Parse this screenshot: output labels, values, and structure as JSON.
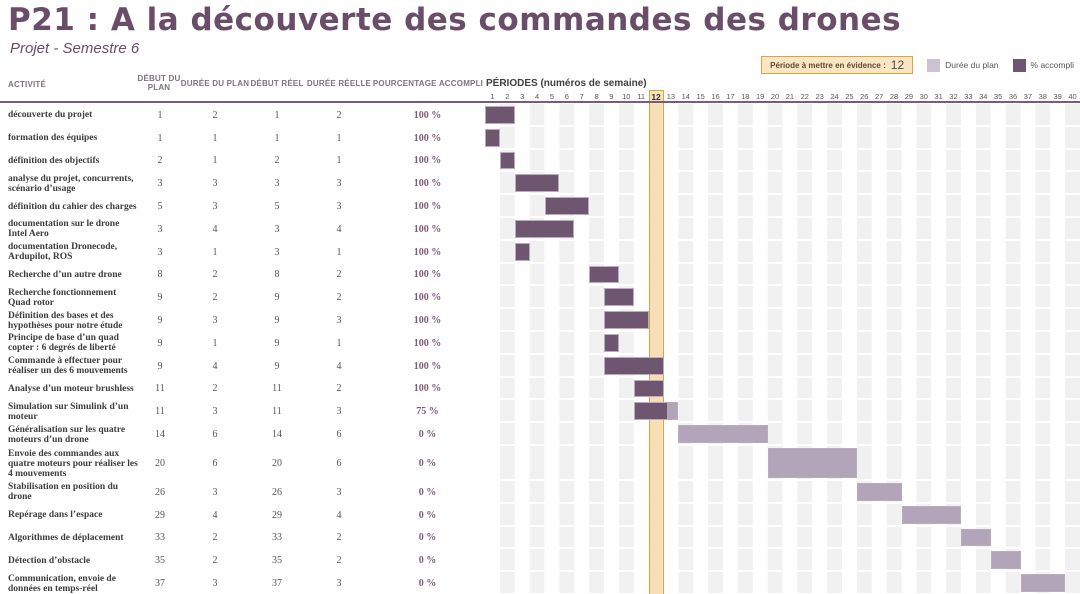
{
  "title": "P21 : A la découverte des commandes des drones",
  "subtitle": "Projet - Semestre 6",
  "legend": {
    "highlight_label": "Période à mettre en évidence :",
    "highlight_value": "12",
    "plan_label": "Durée du plan",
    "done_label": "% accompli"
  },
  "colors": {
    "title_purple": "#6a4d68",
    "header_line": "#7a5c78",
    "bar_plan": "#b3a5b9",
    "bar_done": "#6e5570",
    "stripe_gray": "#f1f1f1",
    "highlight_fill": "#f6dfb7",
    "highlight_border": "#d9a441",
    "legend_plan_swatch": "#cdc2d2"
  },
  "table": {
    "headers": [
      "ACTIVITÉ",
      "DÉBUT DU PLAN",
      "DURÉE DU PLAN",
      "DÉBUT RÉEL",
      "DURÉE RÉELLE",
      "POURCENTAGE ACCOMPLI"
    ]
  },
  "periods": {
    "label": "PÉRIODES (numéros de semaine)",
    "weeks_total": 40,
    "highlight_week": 12
  },
  "chart_data": {
    "type": "gantt",
    "x_axis": "numéros de semaine 1–40",
    "highlight_week": 12,
    "tasks": [
      {
        "name": "découverte du projet",
        "plan_start": "1",
        "plan_dur": "2",
        "real_start": "1",
        "real_dur": "2",
        "pct": 100,
        "pct_label": "100 %"
      },
      {
        "name": "formation des équipes",
        "plan_start": "1",
        "plan_dur": "1",
        "real_start": "1",
        "real_dur": "1",
        "pct": 100,
        "pct_label": "100 %"
      },
      {
        "name": "définition des objectifs",
        "plan_start": "2",
        "plan_dur": "1",
        "real_start": "2",
        "real_dur": "1",
        "pct": 100,
        "pct_label": "100 %"
      },
      {
        "name": "analyse du projet, concurrents, scénario d’usage",
        "plan_start": "3",
        "plan_dur": "3",
        "real_start": "3",
        "real_dur": "3",
        "pct": 100,
        "pct_label": "100 %"
      },
      {
        "name": "définition du cahier des charges",
        "plan_start": "5",
        "plan_dur": "3",
        "real_start": "5",
        "real_dur": "3",
        "pct": 100,
        "pct_label": "100 %"
      },
      {
        "name": "documentation sur le drone Intel Aero",
        "plan_start": "3",
        "plan_dur": "4",
        "real_start": "3",
        "real_dur": "4",
        "pct": 100,
        "pct_label": "100 %"
      },
      {
        "name": "documentation Dronecode, Ardupilot, ROS",
        "plan_start": "3",
        "plan_dur": "1",
        "real_start": "3",
        "real_dur": "1",
        "pct": 100,
        "pct_label": "100 %"
      },
      {
        "name": "Recherche d’un autre drone",
        "plan_start": "8",
        "plan_dur": "2",
        "real_start": "8",
        "real_dur": "2",
        "pct": 100,
        "pct_label": "100 %"
      },
      {
        "name": "Recherche fonctionnement Quad rotor",
        "plan_start": "9",
        "plan_dur": "2",
        "real_start": "9",
        "real_dur": "2",
        "pct": 100,
        "pct_label": "100 %"
      },
      {
        "name": "Définition des bases et des hypothèses pour notre étude",
        "plan_start": "9",
        "plan_dur": "3",
        "real_start": "9",
        "real_dur": "3",
        "pct": 100,
        "pct_label": "100 %"
      },
      {
        "name": "Principe de base d’un quad copter : 6 degrés de liberté",
        "plan_start": "9",
        "plan_dur": "1",
        "real_start": "9",
        "real_dur": "1",
        "pct": 100,
        "pct_label": "100 %"
      },
      {
        "name": "Commande à effectuer pour réaliser un des 6 mouvements",
        "plan_start": "9",
        "plan_dur": "4",
        "real_start": "9",
        "real_dur": "4",
        "pct": 100,
        "pct_label": "100 %"
      },
      {
        "name": "Analyse d’un moteur brushless",
        "plan_start": "11",
        "plan_dur": "2",
        "real_start": "11",
        "real_dur": "2",
        "pct": 100,
        "pct_label": "100 %"
      },
      {
        "name": "Simulation sur Simulink d’un moteur",
        "plan_start": "11",
        "plan_dur": "3",
        "real_start": "11",
        "real_dur": "3",
        "pct": 75,
        "pct_label": "75 %"
      },
      {
        "name": "Généralisation sur les quatre moteurs d’un drone",
        "plan_start": "14",
        "plan_dur": "6",
        "real_start": "14",
        "real_dur": "6",
        "pct": 0,
        "pct_label": "0 %"
      },
      {
        "name": "Envoie des commandes aux quatre moteurs pour réaliser les 4 mouvements",
        "plan_start": "20",
        "plan_dur": "6",
        "real_start": "20",
        "real_dur": "6",
        "pct": 0,
        "pct_label": "0 %",
        "tall": true
      },
      {
        "name": "Stabilisation en position du drone",
        "plan_start": "26",
        "plan_dur": "3",
        "real_start": "26",
        "real_dur": "3",
        "pct": 0,
        "pct_label": "0 %"
      },
      {
        "name": "Repérage dans l’espace",
        "plan_start": "29",
        "plan_dur": "4",
        "real_start": "29",
        "real_dur": "4",
        "pct": 0,
        "pct_label": "0 %"
      },
      {
        "name": "Algorithmes de déplacement",
        "plan_start": "33",
        "plan_dur": "2",
        "real_start": "33",
        "real_dur": "2",
        "pct": 0,
        "pct_label": "0 %"
      },
      {
        "name": "Détection d’obstacle",
        "plan_start": "35",
        "plan_dur": "2",
        "real_start": "35",
        "real_dur": "2",
        "pct": 0,
        "pct_label": "0 %"
      },
      {
        "name": "Communication, envoie de données en temps-réel",
        "plan_start": "37",
        "plan_dur": "3",
        "real_start": "37",
        "real_dur": "3",
        "pct": 0,
        "pct_label": "0 %"
      }
    ]
  }
}
